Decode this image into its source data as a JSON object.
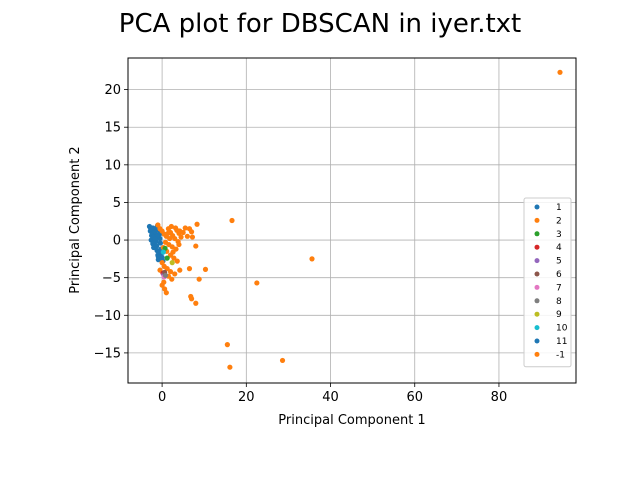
{
  "chart_data": {
    "type": "scatter",
    "title": "PCA plot for DBSCAN in iyer.txt",
    "xlabel": "Principal Component 1",
    "ylabel": "Principal Component 2",
    "xlim": [
      -8.1,
      98.3
    ],
    "ylim": [
      -19.0,
      24.2
    ],
    "xticks": [
      0,
      20,
      40,
      60,
      80
    ],
    "yticks": [
      -15,
      -10,
      -5,
      0,
      5,
      10,
      15,
      20
    ],
    "grid": true,
    "legend_position": "lower-right",
    "series": [
      {
        "name": "1",
        "color": "#1f77b4",
        "points": [
          [
            -3,
            1.8
          ],
          [
            -2.8,
            1.2
          ],
          [
            -2.5,
            0.6
          ],
          [
            -2.6,
            0.0
          ],
          [
            -2.2,
            -0.5
          ],
          [
            -2.0,
            -1.0
          ],
          [
            -1.9,
            1.5
          ],
          [
            -1.7,
            0.9
          ],
          [
            -1.5,
            0.3
          ],
          [
            -1.4,
            -0.2
          ],
          [
            -1.3,
            -0.8
          ],
          [
            -1.2,
            -1.4
          ],
          [
            -1.0,
            -2.0
          ],
          [
            -0.9,
            -2.6
          ],
          [
            -1.1,
            1.9
          ],
          [
            -0.8,
            1.4
          ],
          [
            -0.6,
            0.8
          ],
          [
            -0.5,
            0.2
          ],
          [
            -0.4,
            -0.4
          ],
          [
            -0.3,
            -1.2
          ],
          [
            -0.2,
            -1.8
          ],
          [
            0.0,
            -2.3
          ],
          [
            -2.4,
            1.0
          ],
          [
            -2.1,
            0.4
          ],
          [
            -1.8,
            -0.3
          ],
          [
            -1.6,
            1.1
          ],
          [
            -0.7,
            -1.6
          ],
          [
            0.2,
            -2.8
          ],
          [
            -1.2,
            0.5
          ],
          [
            -2.7,
            1.5
          ]
        ]
      },
      {
        "name": "2",
        "color": "#ff7f0e",
        "points": [
          [
            -1.0,
            2.0
          ],
          [
            -0.5,
            1.5
          ],
          [
            0.0,
            1.2
          ],
          [
            0.5,
            0.8
          ],
          [
            1.0,
            0.5
          ],
          [
            1.5,
            1.5
          ],
          [
            2.0,
            1.0
          ],
          [
            2.5,
            0.6
          ],
          [
            3.0,
            0.2
          ],
          [
            3.5,
            1.3
          ],
          [
            4.0,
            0.9
          ],
          [
            4.5,
            0.4
          ],
          [
            2.2,
            1.8
          ],
          [
            3.2,
            1.6
          ],
          [
            4.2,
            1.2
          ],
          [
            5.5,
            1.6
          ],
          [
            6.5,
            1.5
          ],
          [
            7.0,
            1.1
          ],
          [
            6.0,
            0.5
          ],
          [
            7.2,
            0.4
          ],
          [
            8.3,
            2.1
          ],
          [
            0.8,
            -0.3
          ],
          [
            1.6,
            -0.6
          ],
          [
            2.4,
            -0.9
          ],
          [
            3.3,
            -1.2
          ],
          [
            4.0,
            -0.6
          ],
          [
            1.1,
            -1.5
          ],
          [
            2.0,
            -2.0
          ],
          [
            2.8,
            -2.4
          ],
          [
            3.6,
            -2.8
          ],
          [
            0.3,
            -1.0
          ],
          [
            0.0,
            -3.0
          ],
          [
            0.5,
            -3.5
          ],
          [
            1.2,
            -3.8
          ],
          [
            2.0,
            -4.2
          ],
          [
            3.0,
            -4.5
          ],
          [
            4.2,
            -4.0
          ],
          [
            1.5,
            -4.8
          ],
          [
            2.3,
            -5.2
          ],
          [
            0.4,
            -5.6
          ],
          [
            0.0,
            -6.0
          ],
          [
            0.6,
            -6.5
          ],
          [
            1.0,
            -7.0
          ],
          [
            -0.5,
            -4.0
          ],
          [
            6.5,
            -3.8
          ],
          [
            6.8,
            -7.5
          ],
          [
            7.0,
            -7.8
          ],
          [
            8.0,
            -8.4
          ],
          [
            8.8,
            -5.2
          ],
          [
            8.0,
            -0.8
          ],
          [
            10.3,
            -3.9
          ],
          [
            16.6,
            2.6
          ],
          [
            22.5,
            -5.7
          ],
          [
            35.6,
            -2.5
          ],
          [
            15.5,
            -13.9
          ],
          [
            16.1,
            -16.9
          ],
          [
            28.6,
            -16.0
          ],
          [
            94.5,
            22.3
          ],
          [
            1.8,
            0.2
          ],
          [
            3.8,
            -0.2
          ]
        ]
      },
      {
        "name": "3",
        "color": "#2ca02c",
        "points": [
          [
            0.7,
            -1.1
          ],
          [
            1.2,
            -2.4
          ]
        ]
      },
      {
        "name": "4",
        "color": "#d62728",
        "points": [
          [
            0.2,
            -4.4
          ]
        ]
      },
      {
        "name": "5",
        "color": "#9467bd",
        "points": [
          [
            0.4,
            -4.6
          ]
        ]
      },
      {
        "name": "6",
        "color": "#8c564b",
        "points": [
          [
            0.6,
            -4.3
          ]
        ]
      },
      {
        "name": "7",
        "color": "#e377c2",
        "points": [
          [
            0.5,
            -4.9
          ]
        ]
      },
      {
        "name": "8",
        "color": "#7f7f7f",
        "points": [
          [
            0.8,
            -4.7
          ]
        ]
      },
      {
        "name": "9",
        "color": "#bcbd22",
        "points": [
          [
            2.4,
            -3.0
          ]
        ]
      },
      {
        "name": "10",
        "color": "#17becf",
        "points": [
          [
            0.3,
            -1.6
          ]
        ]
      },
      {
        "name": "11",
        "color": "#1f77b4",
        "points": [
          [
            -2.2,
            1.6
          ],
          [
            -1.6,
            0.1
          ],
          [
            -0.9,
            -2.2
          ]
        ]
      },
      {
        "name": "-1",
        "color": "#ff7f0e",
        "points": [
          [
            5.0,
            1.0
          ],
          [
            1.4,
            0.9
          ],
          [
            2.6,
            -1.6
          ]
        ]
      }
    ]
  }
}
